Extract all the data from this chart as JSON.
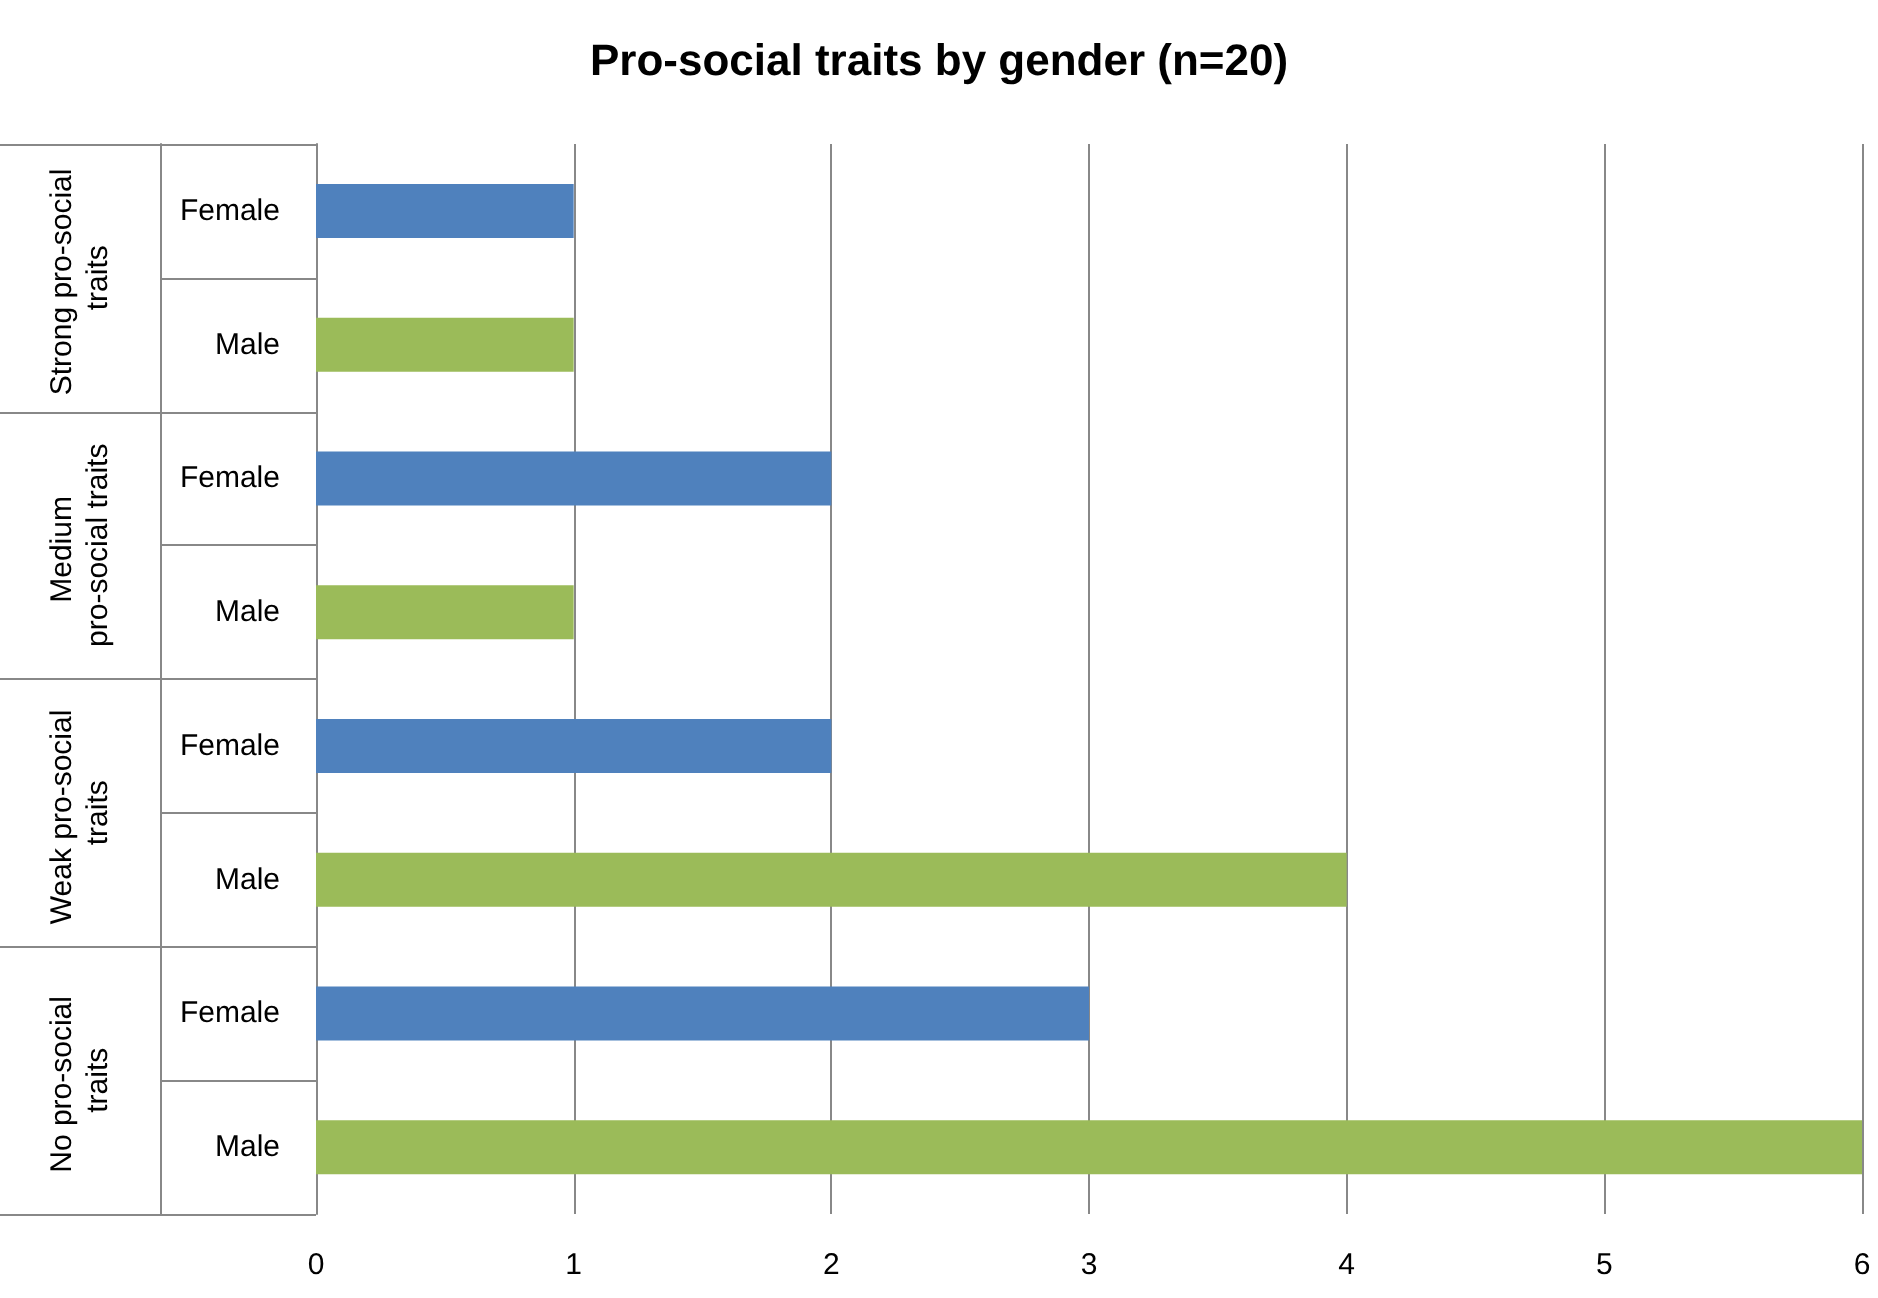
{
  "chart_data": {
    "type": "bar",
    "orientation": "horizontal",
    "title": "Pro-social traits by gender (n=20)",
    "categories": [
      "Female",
      "Male",
      "Female",
      "Male",
      "Female",
      "Male",
      "Female",
      "Male"
    ],
    "values": [
      1,
      1,
      2,
      1,
      2,
      4,
      3,
      6
    ],
    "colors": [
      "#4f81bd",
      "#9bbb59",
      "#4f81bd",
      "#9bbb59",
      "#4f81bd",
      "#9bbb59",
      "#4f81bd",
      "#9bbb59"
    ],
    "annotations": [
      "Strong pro-social traits",
      "Medium pro-social traits",
      "Weak pro-social traits",
      "No pro-social traits"
    ],
    "xlim": [
      0,
      6
    ],
    "xticks": [
      0,
      1,
      2,
      3,
      4,
      5,
      6
    ],
    "grid": "x"
  }
}
